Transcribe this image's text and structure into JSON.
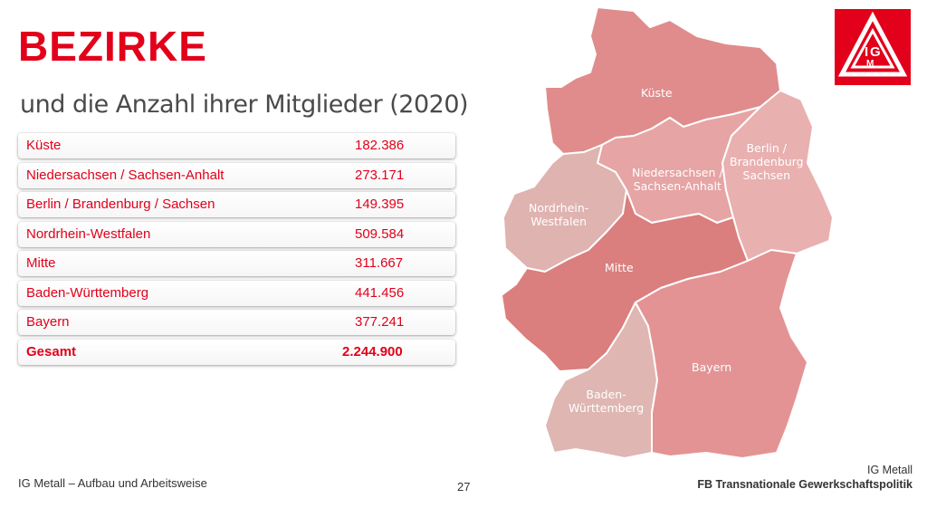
{
  "slide": {
    "title": "BEZIRKE",
    "subtitle": "und die Anzahl ihrer Mitglieder (2020)"
  },
  "table": {
    "rows": [
      {
        "name": "Küste",
        "value": "182.386"
      },
      {
        "name": "Niedersachsen / Sachsen-Anhalt",
        "value": "273.171"
      },
      {
        "name": "Berlin / Brandenburg / Sachsen",
        "value": "149.395"
      },
      {
        "name": "Nordrhein-Westfalen",
        "value": "509.584"
      },
      {
        "name": "Mitte",
        "value": "311.667"
      },
      {
        "name": "Baden-Württemberg",
        "value": "441.456"
      },
      {
        "name": "Bayern",
        "value": "377.241"
      }
    ],
    "total": {
      "name": "Gesamt",
      "value": "2.244.900"
    }
  },
  "map": {
    "labels": {
      "kueste": "Küste",
      "nds_1": "Niedersachsen /",
      "nds_2": "Sachsen-Anhalt",
      "bbs_1": "Berlin /",
      "bbs_2": "Brandenburg",
      "bbs_3": "Sachsen",
      "nrw_1": "Nordrhein-",
      "nrw_2": "Westfalen",
      "mitte": "Mitte",
      "bw_1": "Baden-",
      "bw_2": "Württemberg",
      "bayern": "Bayern"
    },
    "colors": {
      "kueste": "#e08c8c",
      "nds": "#e6a4a4",
      "bbs": "#e9b0b0",
      "nrw": "#dfb3b0",
      "mitte": "#db7e7e",
      "bw": "#dfb6b2",
      "bayern": "#e39393",
      "border": "#ffffff"
    },
    "logo_text": "IGM"
  },
  "footer": {
    "left": "IG Metall – Aufbau und Arbeitsweise",
    "page": "27",
    "right_1": "IG Metall",
    "right_2": "FB Transnationale Gewerkschaftspolitik"
  },
  "theme": {
    "accent": "#e2001a"
  }
}
